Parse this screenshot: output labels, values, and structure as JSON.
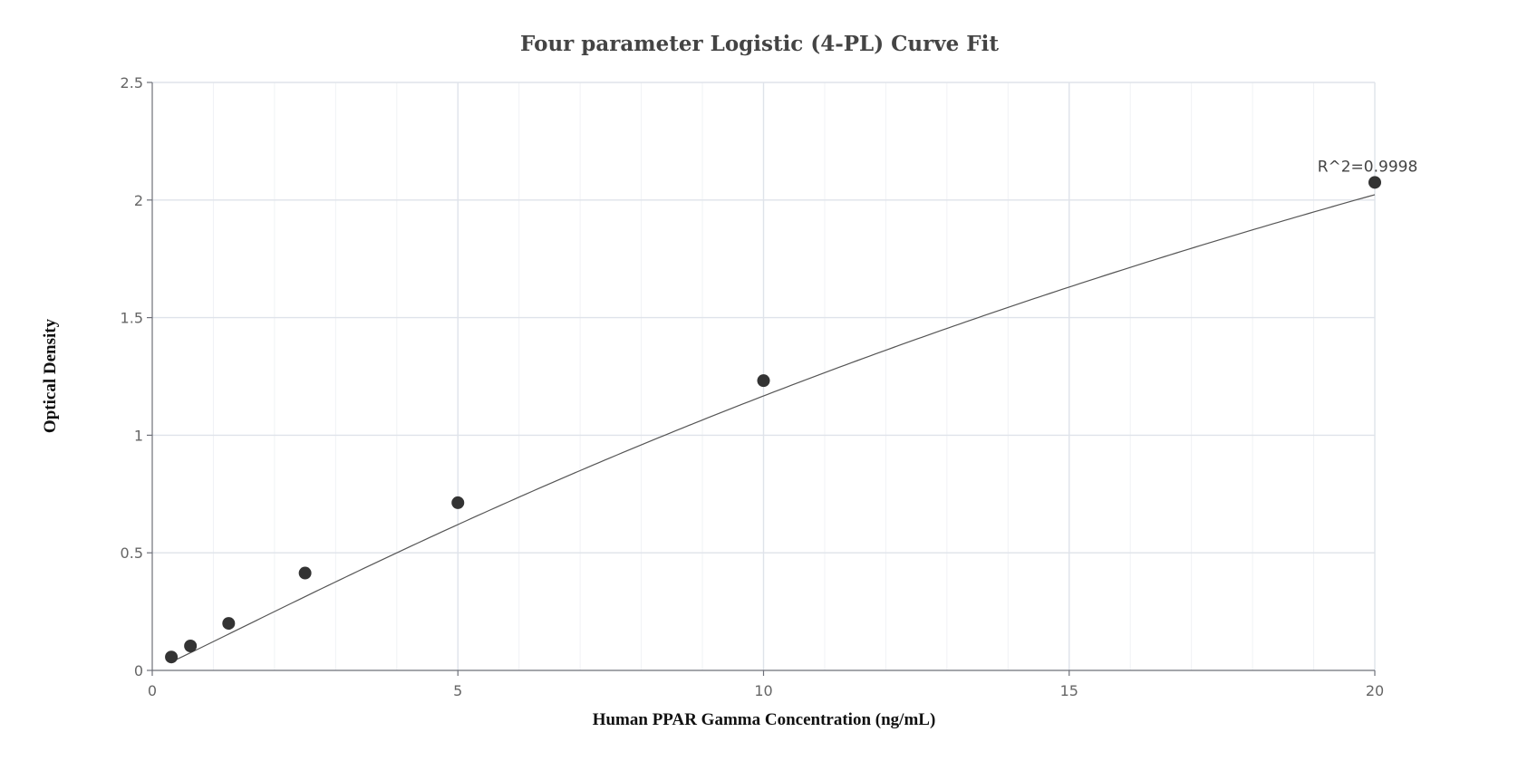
{
  "chart_data": {
    "type": "scatter",
    "title": "Four parameter Logistic (4-PL) Curve Fit",
    "xlabel": "Human PPAR Gamma Concentration (ng/mL)",
    "ylabel": "Optical Density",
    "xlim": [
      0,
      20
    ],
    "ylim": [
      0,
      2.5
    ],
    "x_ticks": [
      0,
      5,
      10,
      15,
      20
    ],
    "x_tick_labels": [
      "0",
      "5",
      "10",
      "15",
      "20"
    ],
    "y_ticks": [
      0,
      0.5,
      1,
      1.5,
      2,
      2.5
    ],
    "y_tick_labels": [
      "0",
      "0.5",
      "1",
      "1.5",
      "2",
      "2.5"
    ],
    "grid": true,
    "points": [
      {
        "x": 0.3125,
        "y": 0.057
      },
      {
        "x": 0.625,
        "y": 0.104
      },
      {
        "x": 1.25,
        "y": 0.2
      },
      {
        "x": 2.5,
        "y": 0.414
      },
      {
        "x": 5,
        "y": 0.713
      },
      {
        "x": 10,
        "y": 1.232
      },
      {
        "x": 20,
        "y": 2.075
      }
    ],
    "fit_curve": {
      "model": "4-PL",
      "A": 0.0,
      "B": 1.06,
      "C": 40,
      "D": 6.24
    },
    "annotation": {
      "text": "R^2=0.9998",
      "x": 20,
      "y": 2.075
    },
    "colors": {
      "points": "#333333",
      "curve": "#555555",
      "grid": "#dfe3ea",
      "axis": "#6e7079"
    }
  }
}
